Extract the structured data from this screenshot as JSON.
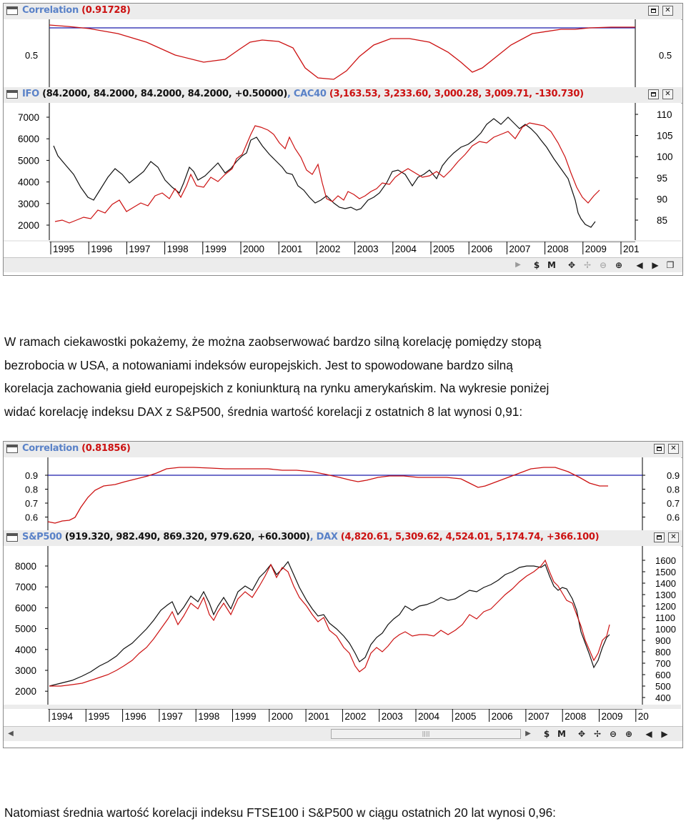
{
  "chart1": {
    "corr_title": "Correlation",
    "corr_value": "(0.91728)",
    "corr_ticks": [
      "0.5"
    ],
    "price_title_a": "IFO",
    "price_vals_a": "(84.2000, 84.2000, 84.2000, 84.2000, +0.50000)",
    "price_title_b": "CAC40",
    "price_vals_b": "(3,163.53, 3,233.60, 3,000.28, 3,009.71, -130.730)",
    "left_ticks": [
      "7000",
      "6000",
      "5000",
      "4000",
      "3000",
      "2000"
    ],
    "right_ticks": [
      "110",
      "105",
      "100",
      "95",
      "90",
      "85"
    ],
    "years": [
      "1995",
      "1996",
      "1997",
      "1998",
      "1999",
      "2000",
      "2001",
      "2002",
      "2003",
      "2004",
      "2005",
      "2006",
      "2007",
      "2008",
      "2009",
      "201"
    ]
  },
  "chart2": {
    "corr_title": "Correlation",
    "corr_value": "(0.81856)",
    "corr_ticks": [
      "0.9",
      "0.8",
      "0.7",
      "0.6"
    ],
    "price_title_a": "S&P500",
    "price_vals_a": "(919.320, 982.490, 869.320, 979.620, +60.3000)",
    "price_title_b": "DAX",
    "price_vals_b": "(4,820.61, 5,309.62, 4,524.01, 5,174.74, +366.100)",
    "left_ticks": [
      "8000",
      "7000",
      "6000",
      "5000",
      "4000",
      "3000",
      "2000"
    ],
    "right_ticks": [
      "1600",
      "1500",
      "1400",
      "1300",
      "1200",
      "1100",
      "1000",
      "900",
      "800",
      "700",
      "600",
      "500",
      "400"
    ],
    "years": [
      "1994",
      "1995",
      "1996",
      "1997",
      "1998",
      "1999",
      "2000",
      "2001",
      "2002",
      "2003",
      "2004",
      "2005",
      "2006",
      "2007",
      "2008",
      "2009",
      "20"
    ]
  },
  "text": {
    "p1_l1": "W ramach ciekawostki pokażemy, że można zaobserwować bardzo silną korelację pomiędzy stopą",
    "p1_l2": "bezrobocia w USA, a notowaniami indeksów europejskich. Jest to spowodowane bardzo silną",
    "p1_l3": "korelacja  zachowania giełd europejskich z koniunkturą na rynku amerykańskim. Na wykresie poniżej",
    "p1_l4": "widać korelację indeksu DAX z S&P500, średnia wartość korelacji z ostatnich 8 lat wynosi 0,91:",
    "p2": "Natomiast średnia wartość korelacji indeksu FTSE100 i S&P500 w ciągu ostatnich 20 lat wynosi 0,96:"
  },
  "colors": {
    "black_series": "#111111",
    "red_series": "#cc1111",
    "corr_line": "#cc1111",
    "level_line": "#1a1aaa"
  },
  "icons": [
    "window-icon",
    "minimize-icon",
    "close-icon",
    "scroll-left-icon",
    "scroll-right-icon",
    "tool-s-icon",
    "tool-m-icon",
    "tool-move-icon",
    "tool-crosshair-icon",
    "zoom-out-icon",
    "zoom-in-icon",
    "play-left-icon",
    "play-right-icon",
    "restore-icon"
  ]
}
